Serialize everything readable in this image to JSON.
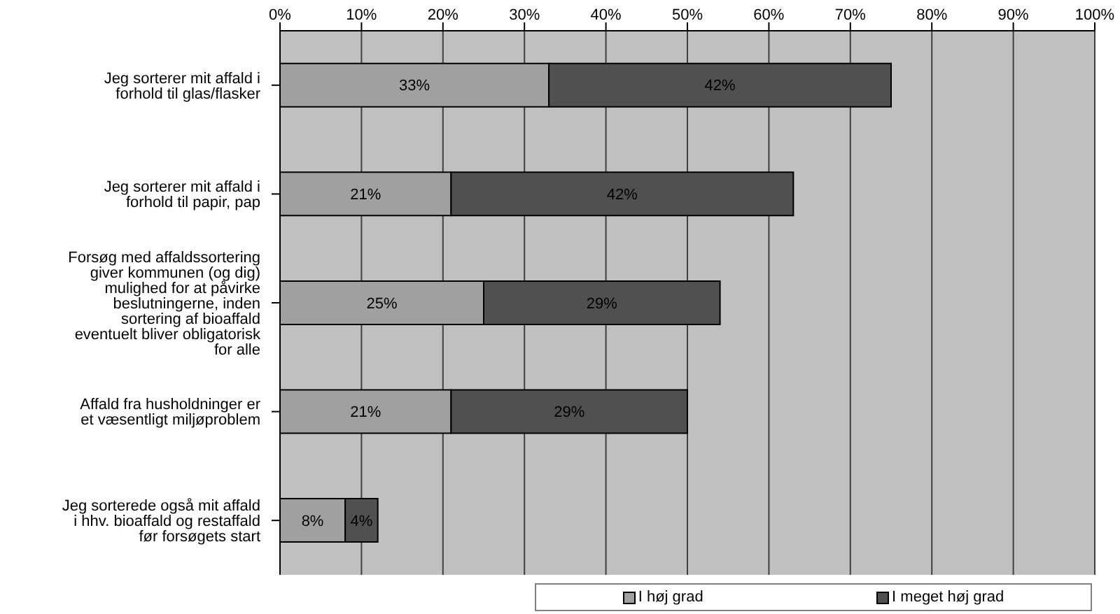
{
  "chart_data": {
    "type": "bar",
    "orientation": "horizontal",
    "stacked": true,
    "categories": [
      "Jeg sorterer mit affald i forhold til glas/flasker",
      "Jeg sorterer mit affald i forhold til papir, pap",
      "Forsøg med affaldssortering giver kommunen (og dig) mulighed for at påvirke beslutningerne, inden sortering af bioaffald eventuelt bliver obligatorisk for alle",
      "Affald fra husholdninger er et væsentligt miljøproblem",
      "Jeg sorterede også mit affald i hhv. bioaffald og restaffald før forsøgets start"
    ],
    "series": [
      {
        "name": "I høj grad",
        "color": "#a0a0a0",
        "values": [
          33,
          21,
          25,
          21,
          8
        ],
        "value_labels": [
          "33%",
          "21%",
          "25%",
          "21%",
          "8%"
        ]
      },
      {
        "name": "I meget høj grad",
        "color": "#505050",
        "values": [
          42,
          42,
          29,
          29,
          4
        ],
        "value_labels": [
          "42%",
          "42%",
          "29%",
          "29%",
          "4%"
        ]
      }
    ],
    "xlim": [
      0,
      100
    ],
    "xticks": [
      {
        "value": 0,
        "label": "0%"
      },
      {
        "value": 10,
        "label": "10%"
      },
      {
        "value": 20,
        "label": "20%"
      },
      {
        "value": 30,
        "label": "30%"
      },
      {
        "value": 40,
        "label": "40%"
      },
      {
        "value": 50,
        "label": "50%"
      },
      {
        "value": 60,
        "label": "60%"
      },
      {
        "value": 70,
        "label": "70%"
      },
      {
        "value": 80,
        "label": "80%"
      },
      {
        "value": 90,
        "label": "90%"
      },
      {
        "value": 100,
        "label": "100%"
      }
    ],
    "grid": "x",
    "legend": "bottom right"
  }
}
